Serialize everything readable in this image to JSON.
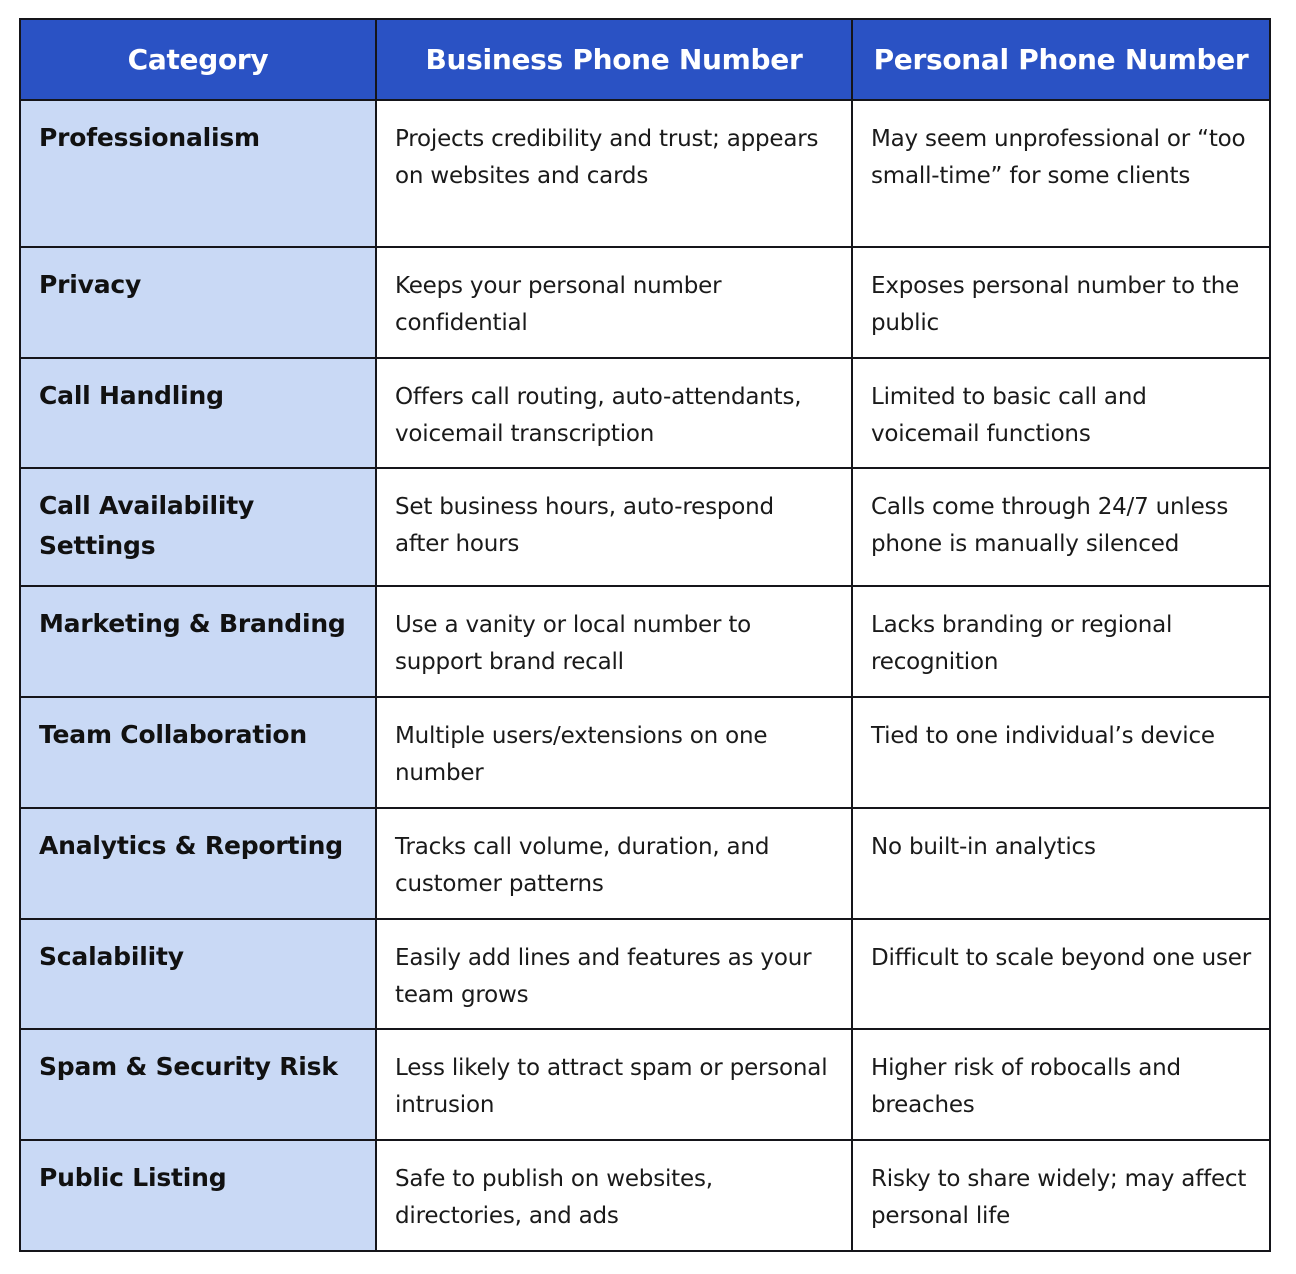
{
  "colors": {
    "header_bg": "#2a52c4",
    "category_bg": "#c9d9f5",
    "border": "#15151a"
  },
  "headers": [
    "Category",
    "Business Phone Number",
    "Personal Phone Number"
  ],
  "rows": [
    {
      "category": "Professionalism",
      "business": "Projects credibility and trust; appears on websites and cards",
      "personal": "May seem unprofessional or “too small-time” for some clients"
    },
    {
      "category": "Privacy",
      "business": "Keeps your personal number confidential",
      "personal": "Exposes personal number to the public"
    },
    {
      "category": "Call Handling",
      "business": "Offers call routing, auto-attendants, voicemail transcription",
      "personal": "Limited to basic call and voicemail functions"
    },
    {
      "category": "Call Availability Settings",
      "business": "Set business hours, auto-respond after hours",
      "personal": "Calls come through 24/7 unless phone is manually silenced"
    },
    {
      "category": "Marketing & Branding",
      "business": "Use a vanity or local number to support brand recall",
      "personal": "Lacks branding or regional recognition"
    },
    {
      "category": "Team Collaboration",
      "business": "Multiple users/extensions on one number",
      "personal": "Tied to one individual’s device"
    },
    {
      "category": "Analytics & Reporting",
      "business": "Tracks call volume, duration, and customer patterns",
      "personal": "No built-in analytics"
    },
    {
      "category": "Scalability",
      "business": "Easily add lines and features as your team grows",
      "personal": "Difficult to scale beyond one user"
    },
    {
      "category": "Spam & Security Risk",
      "business": "Less likely to attract spam or personal intrusion",
      "personal": "Higher risk of robocalls and breaches"
    },
    {
      "category": "Public Listing",
      "business": "Safe to publish on websites, directories, and ads",
      "personal": "Risky to share widely; may affect personal life"
    }
  ]
}
